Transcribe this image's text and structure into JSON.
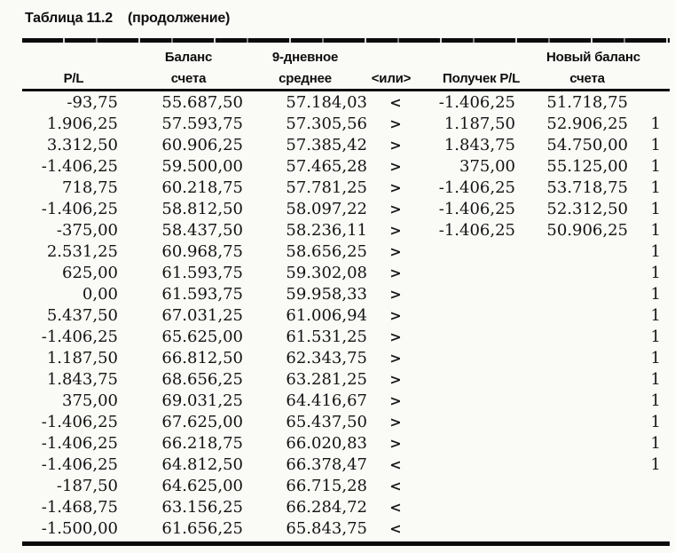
{
  "page": {
    "title": "Таблица 11.2",
    "title_continuation": "(продолжение)"
  },
  "colors": {
    "background": "#fafaf7",
    "text": "#131313",
    "rule": "#0b0b0b"
  },
  "table": {
    "columns": [
      {
        "id": "pl",
        "line1": "",
        "line2": "P/L"
      },
      {
        "id": "balance",
        "line1": "Баланс",
        "line2": "счета"
      },
      {
        "id": "avg9",
        "line1": "9-дневное",
        "line2": "среднее"
      },
      {
        "id": "or",
        "line1": "",
        "line2": "<или>"
      },
      {
        "id": "received-pl",
        "line1": "",
        "line2": "Получек P/L"
      },
      {
        "id": "new-balance",
        "line1": "Новый баланс",
        "line2": "счета"
      },
      {
        "id": "flag",
        "line1": "",
        "line2": ""
      }
    ],
    "rows": [
      [
        "-93,75",
        "55.687,50",
        "57.184,03",
        "<",
        "-1.406,25",
        "51.718,75",
        ""
      ],
      [
        "1.906,25",
        "57.593,75",
        "57.305,56",
        ">",
        "1.187,50",
        "52.906,25",
        "1"
      ],
      [
        "3.312,50",
        "60.906,25",
        "57.385,42",
        ">",
        "1.843,75",
        "54.750,00",
        "1"
      ],
      [
        "-1.406,25",
        "59.500,00",
        "57.465,28",
        ">",
        "375,00",
        "55.125,00",
        "1"
      ],
      [
        "718,75",
        "60.218,75",
        "57.781,25",
        ">",
        "-1.406,25",
        "53.718,75",
        "1"
      ],
      [
        "-1.406,25",
        "58.812,50",
        "58.097,22",
        ">",
        "-1.406,25",
        "52.312,50",
        "1"
      ],
      [
        "-375,00",
        "58.437,50",
        "58.236,11",
        ">",
        "-1.406,25",
        "50.906,25",
        "1"
      ],
      [
        "2.531,25",
        "60.968,75",
        "58.656,25",
        ">",
        "",
        "",
        "1"
      ],
      [
        "625,00",
        "61.593,75",
        "59.302,08",
        ">",
        "",
        "",
        "1"
      ],
      [
        "0,00",
        "61.593,75",
        "59.958,33",
        ">",
        "",
        "",
        "1"
      ],
      [
        "5.437,50",
        "67.031,25",
        "61.006,94",
        ">",
        "",
        "",
        "1"
      ],
      [
        "-1.406,25",
        "65.625,00",
        "61.531,25",
        ">",
        "",
        "",
        "1"
      ],
      [
        "1.187,50",
        "66.812,50",
        "62.343,75",
        ">",
        "",
        "",
        "1"
      ],
      [
        "1.843,75",
        "68.656,25",
        "63.281,25",
        ">",
        "",
        "",
        "1"
      ],
      [
        "375,00",
        "69.031,25",
        "64.416,67",
        ">",
        "",
        "",
        "1"
      ],
      [
        "-1.406,25",
        "67.625,00",
        "65.437,50",
        ">",
        "",
        "",
        "1"
      ],
      [
        "-1.406,25",
        "66.218,75",
        "66.020,83",
        ">",
        "",
        "",
        "1"
      ],
      [
        "-1.406,25",
        "64.812,50",
        "66.378,47",
        "<",
        "",
        "",
        "1"
      ],
      [
        "-187,50",
        "64.625,00",
        "66.715,28",
        "<",
        "",
        "",
        ""
      ],
      [
        "-1.468,75",
        "63.156,25",
        "66.284,72",
        "<",
        "",
        "",
        ""
      ],
      [
        "-1.500,00",
        "61.656,25",
        "65.843,75",
        "<",
        "",
        "",
        ""
      ]
    ]
  }
}
